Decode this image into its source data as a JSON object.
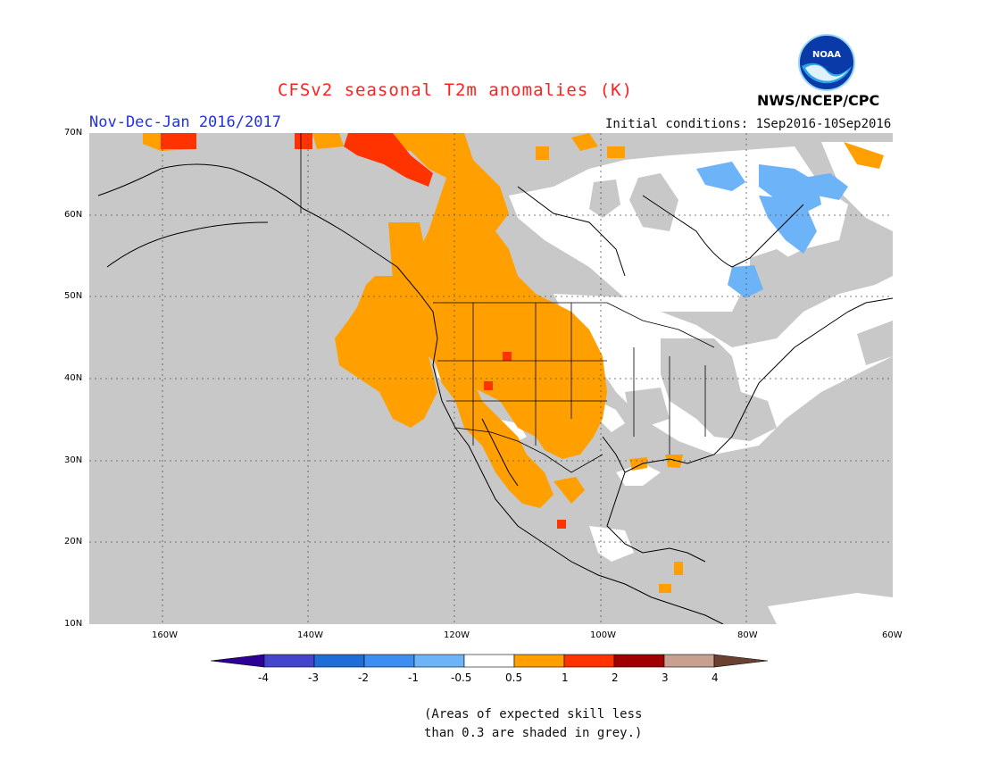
{
  "title": "CFSv2 seasonal T2m anomalies (K)",
  "period": "Nov-Dec-Jan 2016/2017",
  "initial_conditions": "Initial conditions: 1Sep2016-10Sep2016",
  "organization": "NWS/NCEP/CPC",
  "logo_text": "NOAA",
  "map": {
    "lat_labels": [
      "70N",
      "60N",
      "50N",
      "40N",
      "30N",
      "20N",
      "10N"
    ],
    "lon_labels": [
      "160W",
      "140W",
      "120W",
      "100W",
      "80W",
      "60W"
    ],
    "lat_range": [
      10,
      70
    ],
    "lon_range": [
      -170,
      -60
    ],
    "colors": {
      "grey": "#c8c8c8",
      "white": "#ffffff",
      "orange": "#ff9f00",
      "red": "#ff3300",
      "lightblue": "#6cb3f8",
      "blue": "#3d8ef0"
    }
  },
  "colorbar": {
    "labels": [
      "-4",
      "-3",
      "-2",
      "-1",
      "-0.5",
      "0.5",
      "1",
      "2",
      "3",
      "4"
    ],
    "colors": [
      "#2d0096",
      "#4444cc",
      "#1f6ed8",
      "#3d8ef0",
      "#6cb3f8",
      "#ffffff",
      "#ff9f00",
      "#ff3300",
      "#a00000",
      "#c8a090",
      "#6a4030"
    ]
  },
  "note_line1": "(Areas of expected skill less",
  "note_line2": "than 0.3 are shaded in grey.)"
}
